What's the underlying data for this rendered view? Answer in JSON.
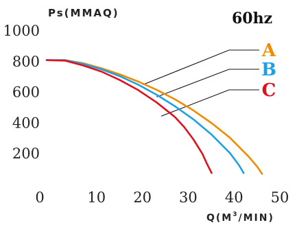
{
  "chart_data": {
    "type": "line",
    "ylabel": "Ps(MMAQ)",
    "xlabel_main": "Q(M",
    "xlabel_sup": "3",
    "xlabel_tail": "/MIN)",
    "annotation": "60hz",
    "xlim": [
      0,
      50
    ],
    "ylim": [
      0,
      1000
    ],
    "x_ticks": [
      "0",
      "10",
      "20",
      "30",
      "40",
      "50"
    ],
    "y_ticks": [
      "1000",
      "800",
      "600",
      "400",
      "200"
    ],
    "x_tick_values": [
      0,
      10,
      20,
      30,
      40,
      50
    ],
    "y_tick_values": [
      1000,
      800,
      600,
      400,
      200
    ],
    "grid": false,
    "series": [
      {
        "name": "A",
        "color": "#f08c00",
        "points": [
          [
            0,
            805
          ],
          [
            4,
            805
          ],
          [
            8,
            785
          ],
          [
            12,
            752
          ],
          [
            16,
            712
          ],
          [
            20,
            665
          ],
          [
            24,
            612
          ],
          [
            28,
            550
          ],
          [
            32,
            478
          ],
          [
            36,
            395
          ],
          [
            40,
            300
          ],
          [
            44,
            180
          ],
          [
            46,
            110
          ],
          [
            47,
            65
          ]
        ],
        "leader_from": [
          21,
          645
        ]
      },
      {
        "name": "B",
        "color": "#1ea0e6",
        "points": [
          [
            0,
            805
          ],
          [
            4,
            805
          ],
          [
            8,
            780
          ],
          [
            12,
            745
          ],
          [
            16,
            700
          ],
          [
            20,
            645
          ],
          [
            24,
            580
          ],
          [
            28,
            505
          ],
          [
            32,
            420
          ],
          [
            36,
            320
          ],
          [
            40,
            200
          ],
          [
            42,
            120
          ],
          [
            43,
            70
          ]
        ],
        "leader_from": [
          24,
          565
        ]
      },
      {
        "name": "C",
        "color": "#e0101e",
        "points": [
          [
            0,
            805
          ],
          [
            4,
            802
          ],
          [
            8,
            770
          ],
          [
            12,
            730
          ],
          [
            16,
            675
          ],
          [
            20,
            610
          ],
          [
            24,
            530
          ],
          [
            28,
            435
          ],
          [
            30,
            370
          ],
          [
            32,
            290
          ],
          [
            34,
            195
          ],
          [
            35,
            130
          ],
          [
            36,
            70
          ]
        ],
        "leader_from": [
          25,
          440
        ]
      }
    ]
  }
}
